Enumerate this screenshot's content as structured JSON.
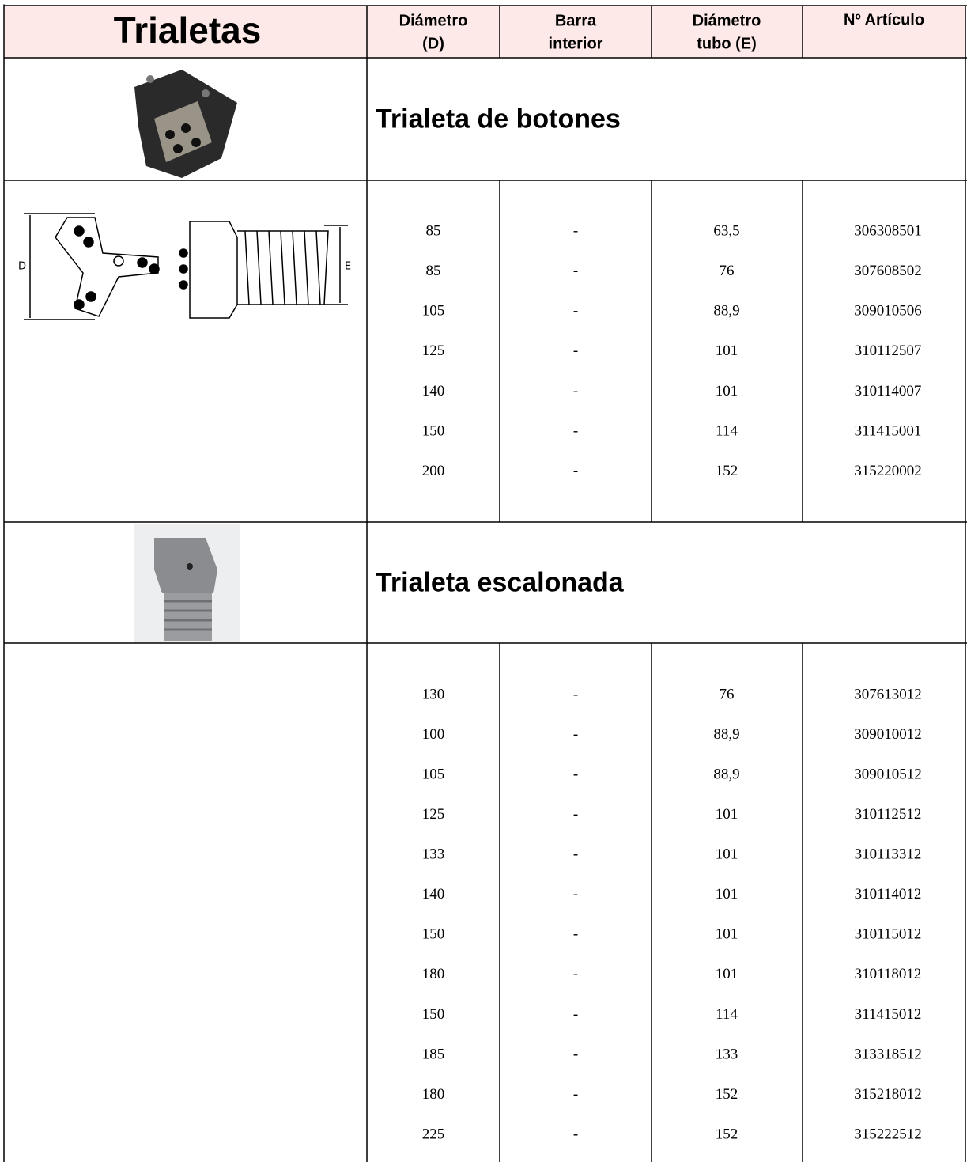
{
  "header": {
    "title": "Trialetas",
    "columns": [
      [
        "Diámetro",
        "(D)"
      ],
      [
        "Barra",
        "interior"
      ],
      [
        "Diámetro",
        "tubo (E)"
      ],
      [
        "Nº  Artículo"
      ]
    ]
  },
  "sections": [
    {
      "title": "Trialeta de botones",
      "diagram_labels": [
        "D",
        "E"
      ],
      "rows": [
        [
          "85",
          "-",
          "63,5",
          "306308501"
        ],
        [
          "85",
          "-",
          "76",
          "307608502"
        ],
        [
          "105",
          "-",
          "88,9",
          "309010506"
        ],
        [
          "125",
          "-",
          "101",
          "310112507"
        ],
        [
          "140",
          "-",
          "101",
          "310114007"
        ],
        [
          "150",
          "-",
          "114",
          "311415001"
        ],
        [
          "200",
          "-",
          "152",
          "315220002"
        ]
      ]
    },
    {
      "title": "Trialeta escalonada",
      "rows": [
        [
          "130",
          "-",
          "76",
          "307613012"
        ],
        [
          "100",
          "-",
          "88,9",
          "309010012"
        ],
        [
          "105",
          "-",
          "88,9",
          "309010512"
        ],
        [
          "125",
          "-",
          "101",
          "310112512"
        ],
        [
          "133",
          "-",
          "101",
          "310113312"
        ],
        [
          "140",
          "-",
          "101",
          "310114012"
        ],
        [
          "150",
          "-",
          "101",
          "310115012"
        ],
        [
          "180",
          "-",
          "101",
          "310118012"
        ],
        [
          "150",
          "-",
          "114",
          "311415012"
        ],
        [
          "185",
          "-",
          "133",
          "313318512"
        ],
        [
          "180",
          "-",
          "152",
          "315218012"
        ],
        [
          "225",
          "-",
          "152",
          "315222512"
        ]
      ]
    }
  ]
}
